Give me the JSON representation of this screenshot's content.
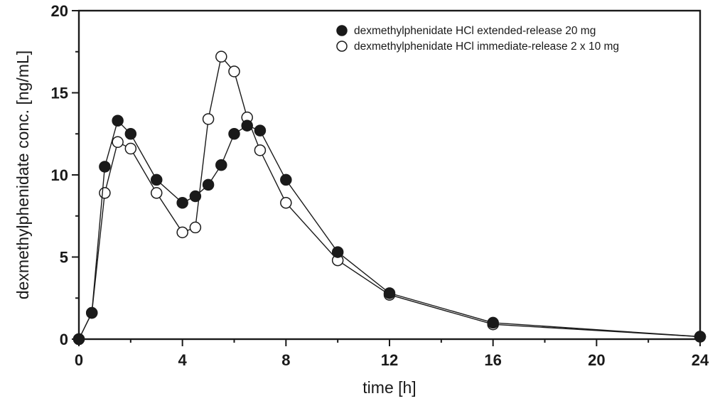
{
  "chart_data": {
    "type": "line",
    "title": "",
    "xlabel": "time [h]",
    "ylabel": "dexmethylphenidate conc. [ng/mL]",
    "xlim": [
      0,
      24
    ],
    "ylim": [
      0,
      20
    ],
    "x_ticks": [
      "0",
      "4",
      "8",
      "12",
      "16",
      "20",
      "24"
    ],
    "y_ticks": [
      "0",
      "5",
      "10",
      "15",
      "20"
    ],
    "grid": false,
    "legend_position": "top-right",
    "series": [
      {
        "name": "dexmethylphenidate HCl extended-release 20 mg",
        "marker": "filled-circle",
        "color": "#1a1a1a",
        "x": [
          0,
          0.5,
          1,
          1.5,
          2,
          3,
          4,
          4.5,
          5,
          5.5,
          6,
          6.5,
          7,
          8,
          10,
          12,
          16,
          24
        ],
        "y": [
          0,
          1.6,
          10.5,
          13.3,
          12.5,
          9.7,
          8.3,
          8.7,
          9.4,
          10.6,
          12.5,
          13.0,
          12.7,
          9.7,
          5.3,
          2.8,
          1.0,
          0.15
        ]
      },
      {
        "name": "dexmethylphenidate HCl immediate-release 2 x 10 mg",
        "marker": "open-circle",
        "color": "#1a1a1a",
        "x": [
          0,
          0.5,
          1,
          1.5,
          2,
          3,
          4,
          4.5,
          5,
          5.5,
          6,
          6.5,
          7,
          8,
          10,
          12,
          16,
          24
        ],
        "y": [
          0,
          1.6,
          8.9,
          12.0,
          11.6,
          8.9,
          6.5,
          6.8,
          13.4,
          17.2,
          16.3,
          13.5,
          11.5,
          8.3,
          4.8,
          2.7,
          0.9,
          0.15
        ]
      }
    ]
  }
}
